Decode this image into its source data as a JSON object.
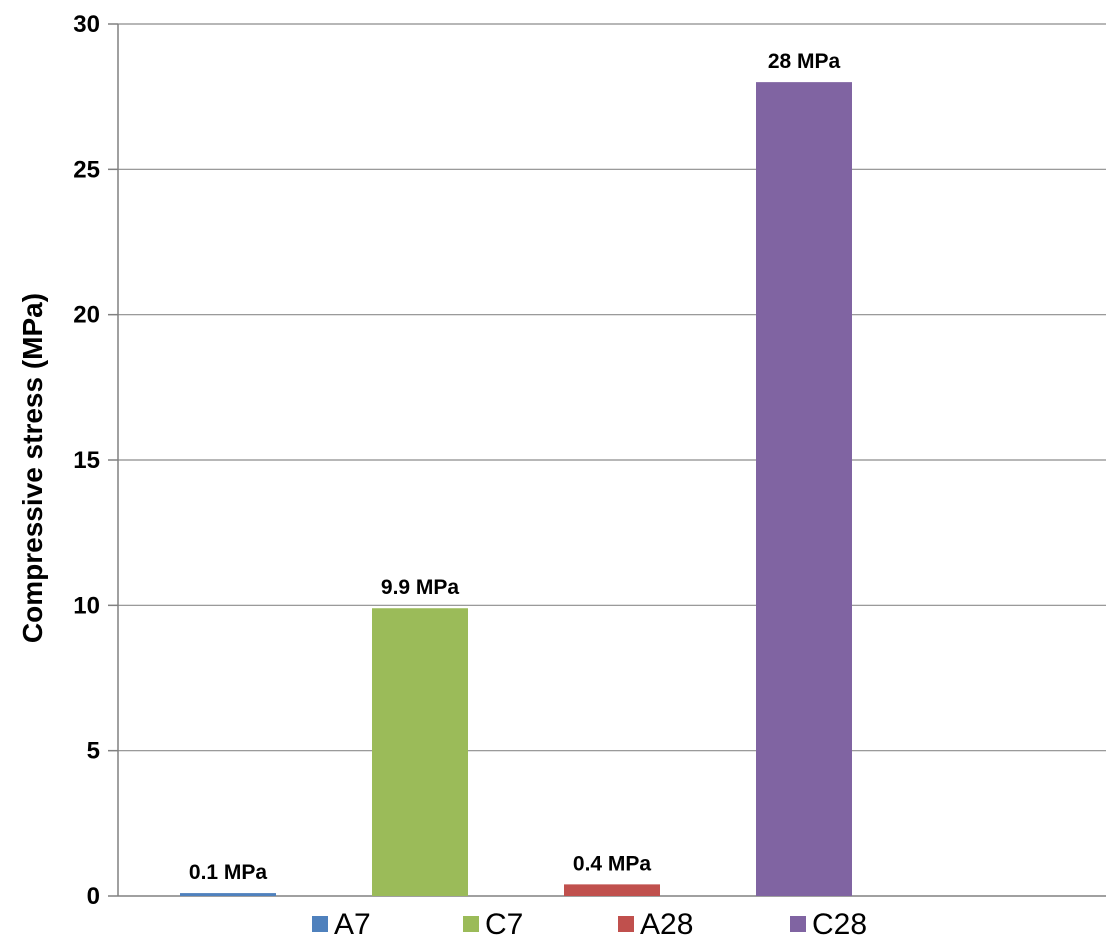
{
  "chart_data": {
    "type": "bar",
    "categories": [
      "A7",
      "C7",
      "A28",
      "C28"
    ],
    "values": [
      0.1,
      9.9,
      0.4,
      28
    ],
    "data_labels": [
      "0.1 MPa",
      "9.9 MPa",
      "0.4 MPa",
      "28 MPa"
    ],
    "colors": [
      "#4F81BD",
      "#9BBB59",
      "#C0504D",
      "#8064A2"
    ],
    "title": "",
    "xlabel": "",
    "ylabel": "Compressive stress (MPa)",
    "ylim": [
      0,
      30
    ],
    "yticks": [
      0,
      5,
      10,
      15,
      20,
      25,
      30
    ],
    "grid": true,
    "legend": {
      "position": "bottom",
      "entries": [
        "A7",
        "C7",
        "A28",
        "C28"
      ]
    }
  }
}
